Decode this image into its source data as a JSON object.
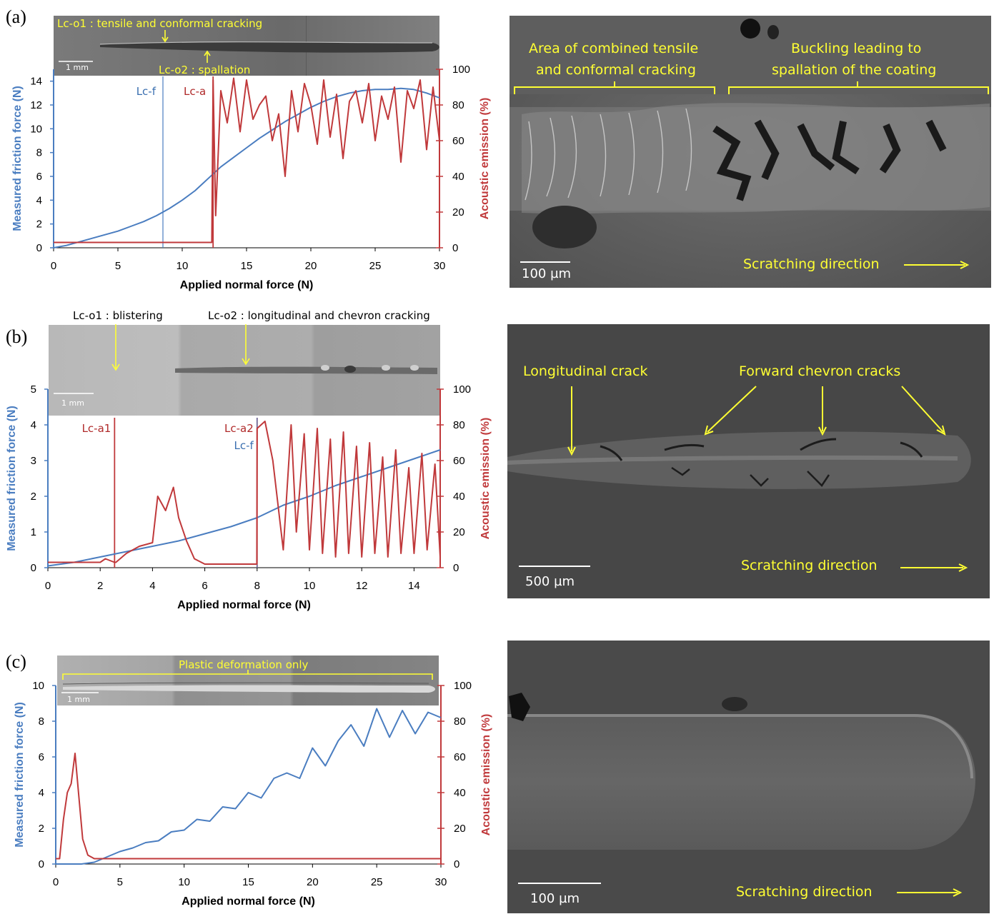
{
  "colors": {
    "friction": "#4a7dc0",
    "acoustic": "#c0393b",
    "annotation": "#ffff33"
  },
  "panels": [
    {
      "label": "(a)",
      "optical": {
        "annotation_top": "Lc-o1 : tensile and conformal cracking",
        "annotation_bottom": "Lc-o2 : spallation",
        "scale": "1 mm"
      },
      "sem": {
        "labels": [
          "Area of combined tensile",
          "and conformal cracking",
          "Buckling leading to",
          "spallation of the coating"
        ],
        "direction": "Scratching direction",
        "scale": "100 µm"
      },
      "markers": [
        {
          "text": "Lc-f",
          "x": 8.5,
          "color": "blue"
        },
        {
          "text": "Lc-a",
          "x": 12.4,
          "color": "red"
        }
      ],
      "chart_data": {
        "type": "line",
        "xlabel": "Applied normal force (N)",
        "ylabel": "Measured friction force (N)",
        "y2label": "Acoustic emission (%)",
        "xlim": [
          0,
          30
        ],
        "ylim": [
          0,
          15
        ],
        "y2lim": [
          0,
          100
        ],
        "xticks": [
          "0",
          "5",
          "10",
          "15",
          "20",
          "25",
          "30"
        ],
        "yticks": [
          "0",
          "2",
          "4",
          "6",
          "8",
          "10",
          "12",
          "14"
        ],
        "y2ticks": [
          "0",
          "20",
          "40",
          "60",
          "80",
          "100"
        ],
        "series": [
          {
            "axis": "left",
            "x": [
              0,
              1,
              2,
              3,
              4,
              5,
              6,
              7,
              8,
              9,
              10,
              11,
              12,
              13,
              14,
              15,
              16,
              17,
              18,
              19,
              20,
              21,
              22,
              23,
              24,
              25,
              26,
              27,
              28,
              29,
              30
            ],
            "y": [
              0.0,
              0.2,
              0.5,
              0.8,
              1.1,
              1.4,
              1.8,
              2.2,
              2.7,
              3.3,
              4.0,
              4.8,
              5.8,
              6.8,
              7.6,
              8.4,
              9.2,
              9.9,
              10.6,
              11.2,
              11.8,
              12.3,
              12.7,
              13.0,
              13.2,
              13.3,
              13.3,
              13.4,
              13.3,
              13.0,
              12.6
            ]
          },
          {
            "axis": "right",
            "x": [
              0,
              12.3,
              12.4,
              12.6,
              13.0,
              13.5,
              14.0,
              14.5,
              15.0,
              15.5,
              16.0,
              16.5,
              17.0,
              17.5,
              18.0,
              18.5,
              19.0,
              19.5,
              20.0,
              20.5,
              21.0,
              21.5,
              22.0,
              22.5,
              23.0,
              23.5,
              24.0,
              24.5,
              25.0,
              25.5,
              26.0,
              26.5,
              27.0,
              27.5,
              28.0,
              28.5,
              29.0,
              29.5,
              30.0
            ],
            "y": [
              3,
              3,
              94,
              18,
              88,
              70,
              95,
              65,
              94,
              72,
              80,
              85,
              60,
              75,
              40,
              88,
              65,
              92,
              80,
              58,
              94,
              62,
              86,
              50,
              82,
              88,
              70,
              92,
              60,
              85,
              72,
              90,
              48,
              88,
              78,
              94,
              55,
              90,
              60
            ]
          }
        ]
      }
    },
    {
      "label": "(b)",
      "optical": {
        "annotation_top": "Lc-o1 : blistering",
        "annotation_bottom": "Lc-o2 : longitudinal and chevron cracking",
        "scale": "1 mm"
      },
      "sem": {
        "labels": [
          "Longitudinal crack",
          "Forward chevron cracks"
        ],
        "direction": "Scratching direction",
        "scale": "500 µm"
      },
      "markers": [
        {
          "text": "Lc-a1",
          "x": 2.55,
          "color": "red"
        },
        {
          "text": "Lc-a2",
          "x": 8.0,
          "color": "red"
        },
        {
          "text": "Lc-f",
          "x": 8.0,
          "color": "blue"
        }
      ],
      "chart_data": {
        "type": "line",
        "xlabel": "Applied normal force (N)",
        "ylabel": "Measured friction force (N)",
        "y2label": "Acoustic emission (%)",
        "xlim": [
          0,
          15
        ],
        "ylim": [
          0,
          5
        ],
        "y2lim": [
          0,
          100
        ],
        "xticks": [
          "0",
          "2",
          "4",
          "6",
          "8",
          "10",
          "12",
          "14"
        ],
        "yticks": [
          "0",
          "1",
          "2",
          "3",
          "4",
          "5"
        ],
        "y2ticks": [
          "0",
          "20",
          "40",
          "60",
          "80",
          "100"
        ],
        "series": [
          {
            "axis": "left",
            "x": [
              0,
              1,
              2,
              3,
              4,
              5,
              6,
              7,
              8,
              9,
              10,
              11,
              12,
              13,
              14,
              15
            ],
            "y": [
              0.05,
              0.15,
              0.3,
              0.45,
              0.6,
              0.75,
              0.95,
              1.15,
              1.4,
              1.75,
              2.0,
              2.3,
              2.55,
              2.8,
              3.05,
              3.3
            ]
          },
          {
            "axis": "right",
            "x": [
              0,
              2.0,
              2.2,
              2.55,
              2.6,
              3.0,
              3.5,
              4.0,
              4.2,
              4.5,
              4.8,
              5.0,
              5.3,
              5.6,
              6.0,
              7.0,
              7.99,
              8.0,
              8.3,
              8.6,
              9.0,
              9.3,
              9.5,
              9.8,
              10.0,
              10.3,
              10.5,
              10.8,
              11.0,
              11.3,
              11.5,
              11.8,
              12.0,
              12.3,
              12.5,
              12.8,
              13.0,
              13.3,
              13.5,
              13.8,
              14.0,
              14.3,
              14.5,
              14.8,
              15.0
            ],
            "y": [
              3,
              3,
              5,
              3,
              3,
              8,
              12,
              14,
              40,
              32,
              45,
              28,
              15,
              5,
              2,
              2,
              2,
              78,
              82,
              60,
              10,
              80,
              20,
              75,
              10,
              78,
              8,
              72,
              6,
              76,
              8,
              68,
              6,
              70,
              8,
              62,
              6,
              66,
              8,
              56,
              8,
              64,
              10,
              58,
              6
            ]
          }
        ]
      }
    },
    {
      "label": "(c)",
      "optical": {
        "annotation_top": "Plastic deformation only",
        "scale": "1 mm"
      },
      "sem": {
        "direction": "Scratching direction",
        "scale": "100 µm"
      },
      "chart_data": {
        "type": "line",
        "xlabel": "Applied normal force (N)",
        "ylabel": "Measured friction force (N)",
        "y2label": "Acoustic emission (%)",
        "xlim": [
          0,
          30
        ],
        "ylim": [
          0,
          10
        ],
        "y2lim": [
          0,
          100
        ],
        "xticks": [
          "0",
          "5",
          "10",
          "15",
          "20",
          "25",
          "30"
        ],
        "yticks": [
          "0",
          "2",
          "4",
          "6",
          "8",
          "10"
        ],
        "y2ticks": [
          "0",
          "20",
          "40",
          "60",
          "80",
          "100"
        ],
        "series": [
          {
            "axis": "left",
            "x": [
              0,
              2,
              3,
              4,
              5,
              6,
              7,
              8,
              9,
              10,
              11,
              12,
              13,
              14,
              15,
              16,
              17,
              18,
              19,
              20,
              21,
              22,
              23,
              24,
              25,
              26,
              27,
              28,
              29,
              30
            ],
            "y": [
              0,
              0,
              0.1,
              0.4,
              0.7,
              0.9,
              1.2,
              1.3,
              1.8,
              1.9,
              2.5,
              2.4,
              3.2,
              3.1,
              4.0,
              3.7,
              4.8,
              5.1,
              4.8,
              6.5,
              5.5,
              6.9,
              7.8,
              6.6,
              8.7,
              7.1,
              8.6,
              7.3,
              8.5,
              8.2
            ]
          },
          {
            "axis": "right",
            "x": [
              0,
              0.3,
              0.6,
              0.9,
              1.2,
              1.5,
              1.8,
              2.1,
              2.5,
              3,
              4,
              6,
              10,
              15,
              20,
              25,
              30
            ],
            "y": [
              3,
              3,
              25,
              40,
              45,
              62,
              38,
              14,
              5,
              3,
              3,
              3,
              3,
              3,
              3,
              3,
              3
            ]
          }
        ]
      }
    }
  ]
}
